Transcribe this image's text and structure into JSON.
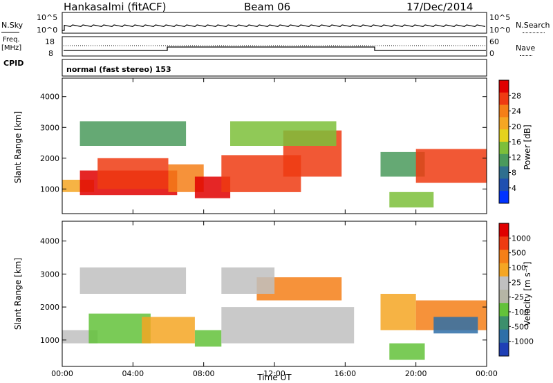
{
  "header": {
    "station": "Hankasalmi (fitACF)",
    "beam": "Beam 06",
    "date": "17/Dec/2014"
  },
  "aux_panels": {
    "nsky_label": "N.Sky",
    "nsearch_label": "N.Search",
    "noise_ticks": [
      "10^5",
      "10^0"
    ],
    "freq_label_line1": "Freq.",
    "freq_label_line2": "[MHz]",
    "freq_ticks": [
      "18",
      "8"
    ],
    "nave_label": "Nave",
    "nave_ticks": [
      "60",
      "0"
    ],
    "cpid_label": "CPID",
    "cpid_text": "normal (fast stereo) 153"
  },
  "chart_data": [
    {
      "type": "heatmap",
      "name": "power",
      "ylabel": "Slant Range [km]",
      "xlabel": "",
      "x_ticks": [
        "00:00",
        "04:00",
        "08:00",
        "12:00",
        "16:00",
        "20:00",
        "00:00"
      ],
      "y_ticks": [
        1000,
        2000,
        3000,
        4000
      ],
      "ylim": [
        200,
        4600
      ],
      "xlim_hours": [
        0,
        24
      ],
      "colorbar": {
        "label": "Power [dB]",
        "ticks": [
          "28",
          "24",
          "20",
          "16",
          "12",
          "8",
          "4"
        ],
        "colors": [
          "#0033ff",
          "#1f4fb0",
          "#2f6f8f",
          "#4a9a5c",
          "#7cbf3a",
          "#e5d21c",
          "#f5a623",
          "#f57f17",
          "#ef3b12",
          "#e00000"
        ]
      },
      "regions": [
        {
          "x": [
            0.0,
            1.8
          ],
          "y": [
            900,
            1300
          ],
          "level": 6
        },
        {
          "x": [
            1.0,
            6.5
          ],
          "y": [
            800,
            1600
          ],
          "level": 9
        },
        {
          "x": [
            2.0,
            6.0
          ],
          "y": [
            1000,
            2000
          ],
          "level": 8
        },
        {
          "x": [
            6.0,
            8.0
          ],
          "y": [
            900,
            1800
          ],
          "level": 7
        },
        {
          "x": [
            7.5,
            9.5
          ],
          "y": [
            700,
            1400
          ],
          "level": 9
        },
        {
          "x": [
            9.0,
            13.5
          ],
          "y": [
            900,
            2100
          ],
          "level": 8
        },
        {
          "x": [
            12.5,
            15.8
          ],
          "y": [
            1400,
            2900
          ],
          "level": 8
        },
        {
          "x": [
            1.0,
            7.0
          ],
          "y": [
            2400,
            3200
          ],
          "level": 3
        },
        {
          "x": [
            9.5,
            15.5
          ],
          "y": [
            2400,
            3200
          ],
          "level": 4
        },
        {
          "x": [
            18.0,
            20.5
          ],
          "y": [
            1400,
            2200
          ],
          "level": 3
        },
        {
          "x": [
            20.0,
            24.0
          ],
          "y": [
            1200,
            2300
          ],
          "level": 8
        },
        {
          "x": [
            18.5,
            21.0
          ],
          "y": [
            400,
            900
          ],
          "level": 4
        }
      ]
    },
    {
      "type": "heatmap",
      "name": "velocity",
      "ylabel": "Slant Range [km]",
      "xlabel": "Time UT",
      "x_ticks": [
        "00:00",
        "04:00",
        "08:00",
        "12:00",
        "16:00",
        "20:00",
        "00:00"
      ],
      "y_ticks": [
        1000,
        2000,
        3000,
        4000
      ],
      "ylim": [
        200,
        4600
      ],
      "xlim_hours": [
        0,
        24
      ],
      "colorbar": {
        "label": "Velocity [m s⁻¹]",
        "ticks": [
          "1000",
          "500",
          "100",
          "25",
          "-25",
          "-100",
          "-500",
          "-1000"
        ],
        "colors": [
          "#1f3fb5",
          "#2e6fa8",
          "#3c8f6c",
          "#63c23a",
          "#b5b5a5",
          "#c0c0c0",
          "#f5a623",
          "#f57f17",
          "#ef3b12",
          "#e00000"
        ]
      },
      "regions": [
        {
          "x": [
            0.0,
            2.0
          ],
          "y": [
            900,
            1300
          ],
          "color": "#c0c0c0"
        },
        {
          "x": [
            1.5,
            5.0
          ],
          "y": [
            900,
            1800
          ],
          "color": "#63c23a"
        },
        {
          "x": [
            4.5,
            7.5
          ],
          "y": [
            900,
            1700
          ],
          "color": "#f5a623"
        },
        {
          "x": [
            7.5,
            9.0
          ],
          "y": [
            800,
            1300
          ],
          "color": "#63c23a"
        },
        {
          "x": [
            9.0,
            16.5
          ],
          "y": [
            900,
            2000
          ],
          "color": "#c0c0c0"
        },
        {
          "x": [
            11.0,
            15.8
          ],
          "y": [
            2200,
            2900
          ],
          "color": "#f57f17"
        },
        {
          "x": [
            1.0,
            7.0
          ],
          "y": [
            2400,
            3200
          ],
          "color": "#c0c0c0"
        },
        {
          "x": [
            9.0,
            12.0
          ],
          "y": [
            2400,
            3200
          ],
          "color": "#c0c0c0"
        },
        {
          "x": [
            18.0,
            20.0
          ],
          "y": [
            1300,
            2400
          ],
          "color": "#f5a623"
        },
        {
          "x": [
            20.0,
            24.0
          ],
          "y": [
            1300,
            2200
          ],
          "color": "#f57f17"
        },
        {
          "x": [
            21.0,
            23.5
          ],
          "y": [
            1200,
            1700
          ],
          "color": "#2e6fa8"
        },
        {
          "x": [
            18.5,
            20.5
          ],
          "y": [
            400,
            900
          ],
          "color": "#63c23a"
        }
      ]
    }
  ]
}
